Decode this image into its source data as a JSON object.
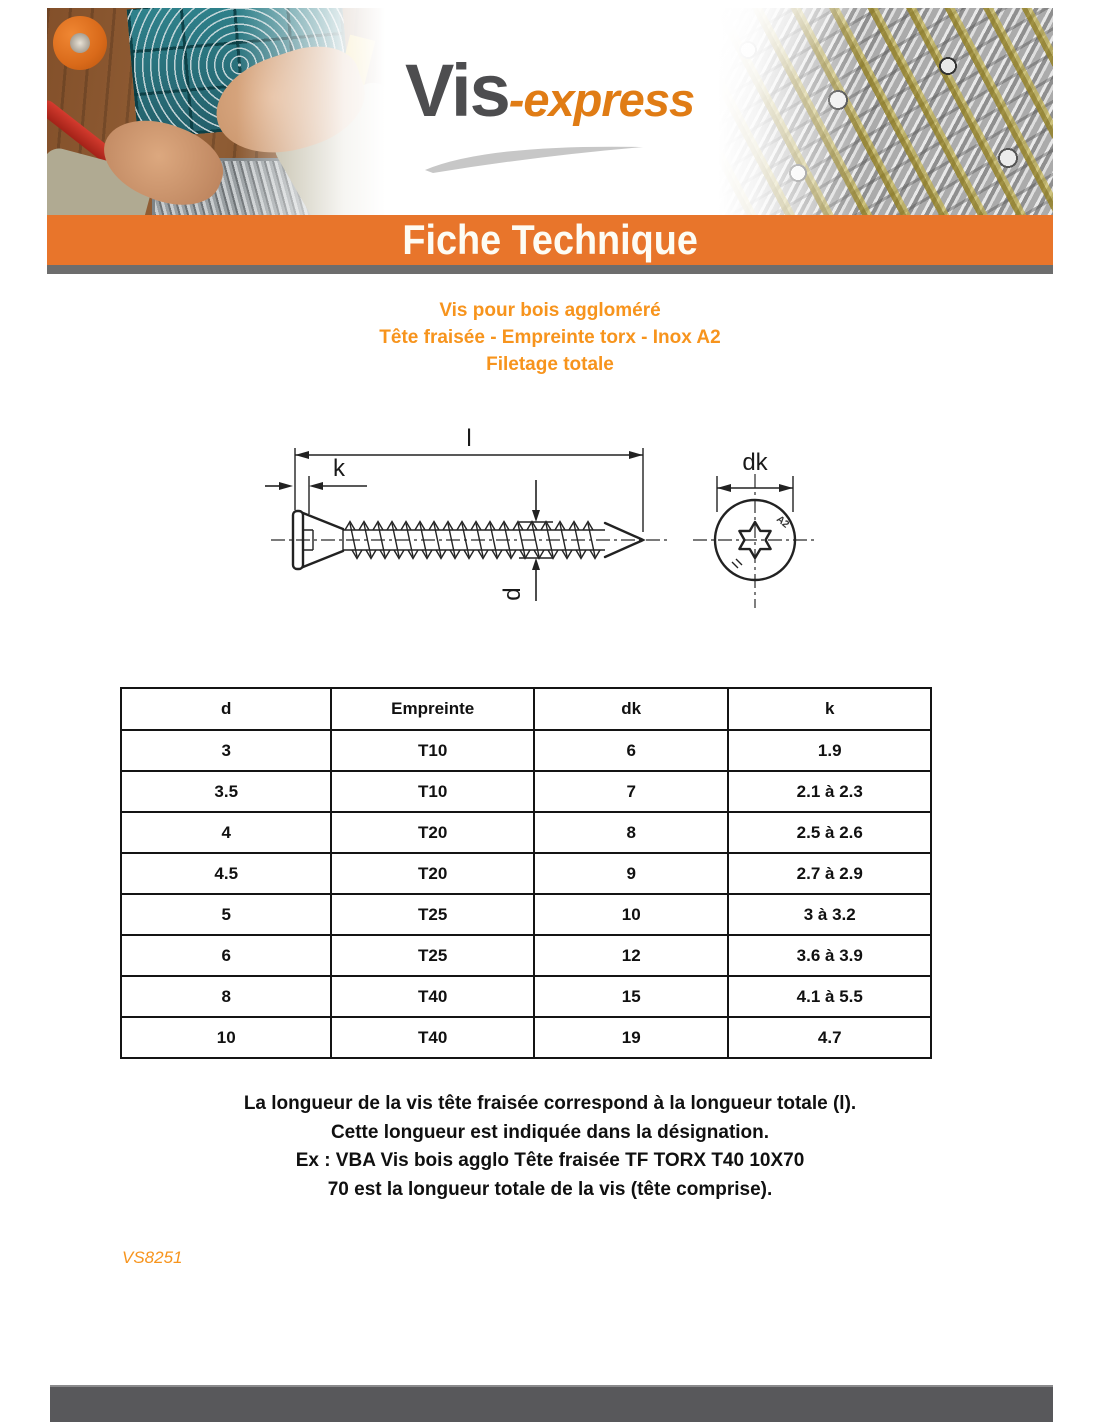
{
  "brand": {
    "logo_primary": "Vis",
    "logo_secondary": "-express"
  },
  "banner": {
    "title": "Fiche Technique"
  },
  "product": {
    "title_lines": [
      "Vis pour bois aggloméré",
      "Tête fraisée - Empreinte torx - Inox A2",
      "Filetage totale"
    ]
  },
  "diagram": {
    "dim_total_length": "l",
    "dim_head_height": "k",
    "dim_diameter": "d",
    "dim_head_diameter": "dk",
    "head_stamp": "A2"
  },
  "table": {
    "headers": [
      "d",
      "Empreinte",
      "dk",
      "k"
    ],
    "rows": [
      [
        "3",
        "T10",
        "6",
        "1.9"
      ],
      [
        "3.5",
        "T10",
        "7",
        "2.1 à 2.3"
      ],
      [
        "4",
        "T20",
        "8",
        "2.5 à 2.6"
      ],
      [
        "4.5",
        "T20",
        "9",
        "2.7 à 2.9"
      ],
      [
        "5",
        "T25",
        "10",
        "3 à 3.2"
      ],
      [
        "6",
        "T25",
        "12",
        "3.6 à 3.9"
      ],
      [
        "8",
        "T40",
        "15",
        "4.1 à 5.5"
      ],
      [
        "10",
        "T40",
        "19",
        "4.7"
      ]
    ]
  },
  "notes": [
    "La longueur de la vis tête fraisée correspond à la longueur totale (l).",
    "Cette longueur est indiquée dans la désignation.",
    "Ex : VBA Vis bois agglo Tête fraisée TF TORX T40 10X70",
    "70 est la longueur totale de la vis (tête comprise)."
  ],
  "reference": "VS8251",
  "colors": {
    "orange_banner": "#E8752B",
    "orange_heading": "#F7941D",
    "orange_logo": "#E07C15",
    "logo_gray": "#4D4D4F",
    "gray_strip": "#6D6D6D",
    "footer_gray": "#58585B"
  }
}
